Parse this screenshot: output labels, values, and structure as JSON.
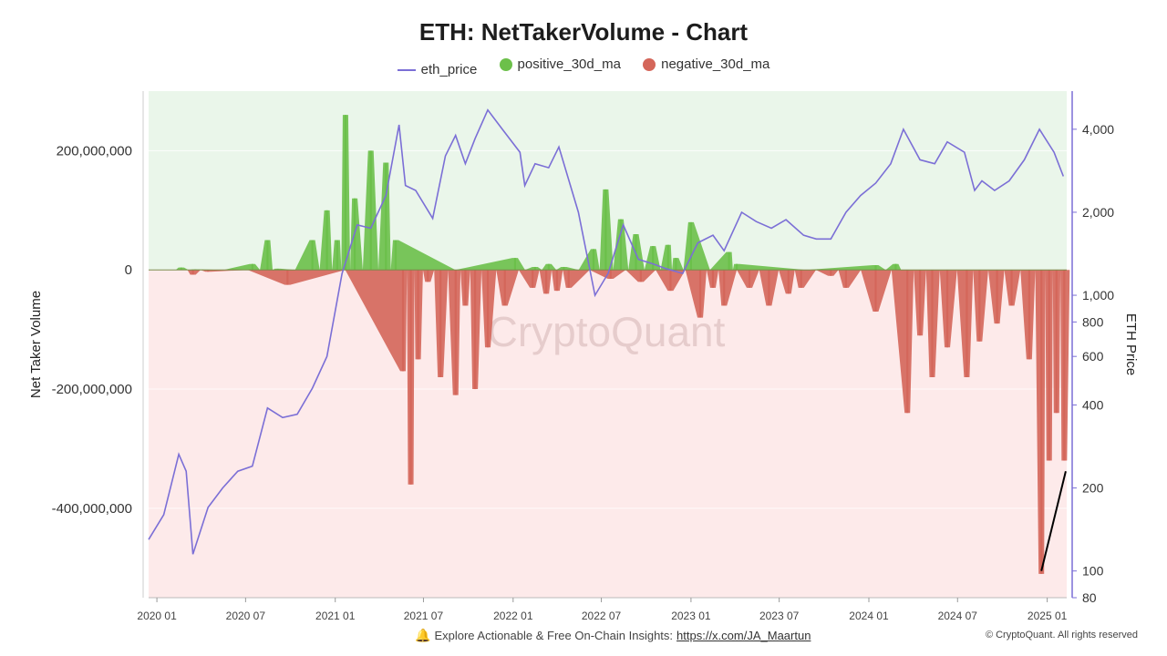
{
  "title": "ETH: NetTakerVolume - Chart",
  "legend": [
    {
      "label": "eth_price",
      "kind": "line",
      "color": "#7b6fd6"
    },
    {
      "label": "positive_30d_ma",
      "kind": "dot",
      "color": "#6cc04a"
    },
    {
      "label": "negative_30d_ma",
      "kind": "dot",
      "color": "#d4665a"
    }
  ],
  "footer": {
    "text": "Explore Actionable & Free On-Chain Insights:",
    "link": "https://x.com/JA_Maartun",
    "copyright": "© CryptoQuant. All rights reserved"
  },
  "watermark": "CryptoQuant",
  "chart_data": {
    "type": "bar",
    "ylabel_left": "Net Taker Volume",
    "ylabel_right": "ETH Price",
    "left_axis": {
      "min": -550000000,
      "max": 300000000,
      "ticks": [
        200000000,
        0,
        -200000000,
        -400000000
      ],
      "tick_labels": [
        "200,000,000",
        "0",
        "-200,000,000",
        "-400,000,000"
      ]
    },
    "right_axis": {
      "scale": "log",
      "min": 80,
      "max": 5500,
      "ticks": [
        4000,
        2000,
        1000,
        800,
        600,
        400,
        200,
        100,
        80
      ],
      "tick_labels": [
        "4,000",
        "2,000",
        "1,000",
        "800",
        "600",
        "400",
        "200",
        "100",
        "80"
      ]
    },
    "x_axis": {
      "start": "2019-12-15",
      "end": "2025-02-10",
      "ticks": [
        "2020-01-01",
        "2020-07-01",
        "2021-01-01",
        "2021-07-01",
        "2022-01-01",
        "2022-07-01",
        "2023-01-01",
        "2023-07-01",
        "2024-01-01",
        "2024-07-01",
        "2025-01-01"
      ],
      "tick_labels": [
        "2020 01",
        "2020 07",
        "2021 01",
        "2021 07",
        "2022 01",
        "2022 07",
        "2023 01",
        "2023 07",
        "2024 01",
        "2024 07",
        "2025 01"
      ]
    },
    "colors": {
      "eth_price": "#7b6fd6",
      "positive": "#6cc04a",
      "negative": "#d4665a",
      "positive_bg": "#eaf6ea",
      "negative_bg": "#fdeaea"
    },
    "series": [
      {
        "name": "eth_price",
        "x": [
          "2019-12-15",
          "2020-01-15",
          "2020-02-15",
          "2020-03-01",
          "2020-03-15",
          "2020-04-15",
          "2020-05-15",
          "2020-06-15",
          "2020-07-15",
          "2020-08-15",
          "2020-09-15",
          "2020-10-15",
          "2020-11-15",
          "2020-12-15",
          "2021-01-15",
          "2021-02-15",
          "2021-03-15",
          "2021-04-15",
          "2021-05-12",
          "2021-05-25",
          "2021-06-15",
          "2021-07-20",
          "2021-08-15",
          "2021-09-05",
          "2021-09-25",
          "2021-10-15",
          "2021-11-10",
          "2021-12-10",
          "2022-01-15",
          "2022-01-25",
          "2022-02-15",
          "2022-03-15",
          "2022-04-05",
          "2022-05-15",
          "2022-06-18",
          "2022-07-15",
          "2022-08-15",
          "2022-09-15",
          "2022-10-15",
          "2022-11-10",
          "2022-12-15",
          "2023-01-15",
          "2023-02-15",
          "2023-03-10",
          "2023-04-15",
          "2023-05-15",
          "2023-06-15",
          "2023-07-15",
          "2023-08-20",
          "2023-09-15",
          "2023-10-15",
          "2023-11-15",
          "2023-12-15",
          "2024-01-15",
          "2024-02-15",
          "2024-03-12",
          "2024-04-15",
          "2024-05-15",
          "2024-06-10",
          "2024-07-15",
          "2024-08-05",
          "2024-08-20",
          "2024-09-15",
          "2024-10-15",
          "2024-11-15",
          "2024-12-16",
          "2025-01-15",
          "2025-02-03"
        ],
        "values": [
          130,
          160,
          265,
          230,
          115,
          170,
          200,
          230,
          240,
          390,
          360,
          370,
          460,
          600,
          1200,
          1800,
          1750,
          2300,
          4150,
          2500,
          2400,
          1900,
          3200,
          3800,
          3000,
          3700,
          4700,
          4000,
          3300,
          2500,
          3000,
          2900,
          3450,
          2000,
          1000,
          1200,
          1800,
          1350,
          1300,
          1250,
          1200,
          1550,
          1650,
          1450,
          2000,
          1850,
          1750,
          1880,
          1650,
          1600,
          1600,
          2000,
          2300,
          2550,
          3000,
          4000,
          3100,
          3000,
          3600,
          3300,
          2400,
          2600,
          2400,
          2600,
          3100,
          4000,
          3300,
          2700
        ]
      },
      {
        "name": "positive_30d_ma",
        "x": [
          "2020-02-20",
          "2020-03-20",
          "2020-07-15",
          "2020-08-15",
          "2020-09-05",
          "2020-11-15",
          "2020-12-15",
          "2021-01-05",
          "2021-01-22",
          "2021-02-10",
          "2021-03-15",
          "2021-04-15",
          "2021-05-05",
          "2022-01-05",
          "2022-02-15",
          "2022-03-15",
          "2022-04-15",
          "2022-06-15",
          "2022-07-10",
          "2022-08-10",
          "2022-09-10",
          "2022-10-15",
          "2022-11-15",
          "2022-12-01",
          "2023-01-01",
          "2023-03-20",
          "2023-04-05",
          "2024-01-15",
          "2024-02-25"
        ],
        "values": [
          4000000,
          1000000,
          10000000,
          50000000,
          2000000,
          50000000,
          100000000,
          50000000,
          260000000,
          120000000,
          200000000,
          180000000,
          50000000,
          20000000,
          5000000,
          10000000,
          5000000,
          35000000,
          135000000,
          85000000,
          60000000,
          40000000,
          42000000,
          20000000,
          80000000,
          30000000,
          10000000,
          8000000,
          10000000
        ]
      },
      {
        "name": "negative_30d_ma",
        "x": [
          "2020-03-15",
          "2020-04-15",
          "2020-09-25",
          "2021-05-20",
          "2021-06-05",
          "2021-06-20",
          "2021-07-10",
          "2021-08-05",
          "2021-09-05",
          "2021-09-25",
          "2021-10-15",
          "2021-11-10",
          "2021-12-15",
          "2022-02-10",
          "2022-03-10",
          "2022-04-01",
          "2022-04-25",
          "2022-07-20",
          "2022-09-20",
          "2022-11-20",
          "2023-01-20",
          "2023-02-15",
          "2023-03-10",
          "2023-05-01",
          "2023-06-10",
          "2023-07-20",
          "2023-08-15",
          "2023-10-15",
          "2023-11-15",
          "2024-01-15",
          "2024-03-20",
          "2024-04-15",
          "2024-05-10",
          "2024-06-10",
          "2024-07-20",
          "2024-08-15",
          "2024-09-20",
          "2024-10-20",
          "2024-11-25",
          "2024-12-20",
          "2025-01-05",
          "2025-01-20",
          "2025-02-05"
        ],
        "values": [
          -8000000,
          -3000000,
          -25000000,
          -170000000,
          -360000000,
          -150000000,
          -20000000,
          -180000000,
          -210000000,
          -60000000,
          -200000000,
          -130000000,
          -60000000,
          -30000000,
          -40000000,
          -35000000,
          -30000000,
          -15000000,
          -20000000,
          -35000000,
          -80000000,
          -30000000,
          -60000000,
          -30000000,
          -60000000,
          -40000000,
          -30000000,
          -10000000,
          -30000000,
          -70000000,
          -240000000,
          -110000000,
          -180000000,
          -130000000,
          -180000000,
          -120000000,
          -90000000,
          -60000000,
          -150000000,
          -510000000,
          -320000000,
          -240000000,
          -320000000
        ]
      }
    ],
    "annotation": {
      "type": "trendline",
      "from": {
        "x": "2024-12-20",
        "y": 100
      },
      "to": {
        "x": "2025-02-08",
        "y": 230
      }
    }
  }
}
